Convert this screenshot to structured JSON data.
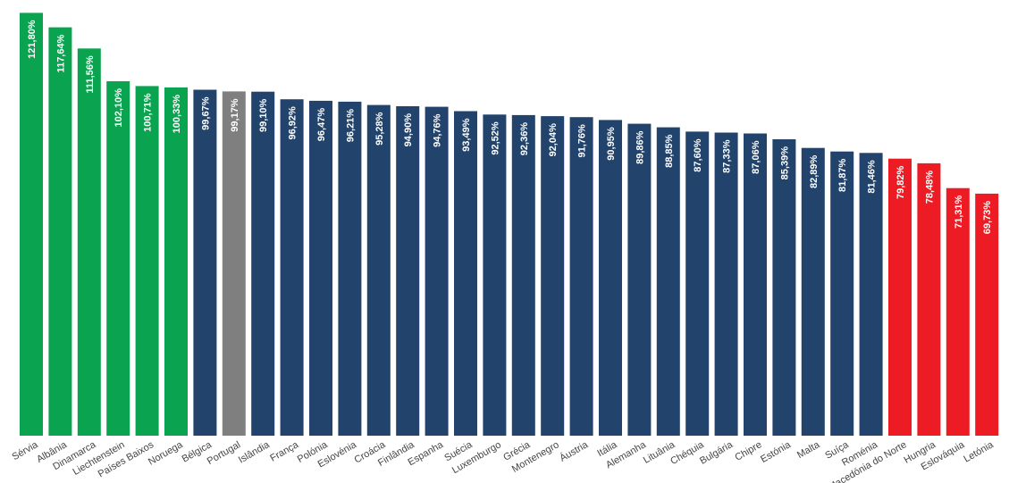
{
  "chart_data": {
    "type": "bar",
    "categories": [
      "Sérvia",
      "Albânia",
      "Dinamarca",
      "Liechtenstein",
      "Países Baixos",
      "Noruega",
      "Bélgica",
      "Portugal",
      "Islândia",
      "França",
      "Polónia",
      "Eslovénia",
      "Croácia",
      "Finlândia",
      "Espanha",
      "Suécia",
      "Luxemburgo",
      "Grécia",
      "Montenegro",
      "Áustria",
      "Itália",
      "Alemanha",
      "Lituânia",
      "Chéquia",
      "Bulgária",
      "Chipre",
      "Estónia",
      "Malta",
      "Suíça",
      "Roménia",
      "Macedónia do Norte",
      "Hungria",
      "Eslováquia",
      "Letónia"
    ],
    "values": [
      121.8,
      117.64,
      111.56,
      102.1,
      100.71,
      100.33,
      99.67,
      99.17,
      99.1,
      96.92,
      96.47,
      96.21,
      95.28,
      94.9,
      94.76,
      93.49,
      92.52,
      92.36,
      92.04,
      91.76,
      90.95,
      89.86,
      88.85,
      87.6,
      87.33,
      87.06,
      85.39,
      82.89,
      81.87,
      81.46,
      79.82,
      78.48,
      71.31,
      69.73
    ],
    "value_labels": [
      "121,80%",
      "117,64%",
      "111,56%",
      "102,10%",
      "100,71%",
      "100,33%",
      "99,67%",
      "99,17%",
      "99,10%",
      "96,92%",
      "96,47%",
      "96,21%",
      "95,28%",
      "94,90%",
      "94,76%",
      "93,49%",
      "92,52%",
      "92,36%",
      "92,04%",
      "91,76%",
      "90,95%",
      "89,86%",
      "88,85%",
      "87,60%",
      "87,33%",
      "87,06%",
      "85,39%",
      "82,89%",
      "81,87%",
      "81,46%",
      "79,82%",
      "78,48%",
      "71,31%",
      "69,73%"
    ],
    "bar_groups": [
      "green",
      "green",
      "green",
      "green",
      "green",
      "green",
      "navy",
      "gray",
      "navy",
      "navy",
      "navy",
      "navy",
      "navy",
      "navy",
      "navy",
      "navy",
      "navy",
      "navy",
      "navy",
      "navy",
      "navy",
      "navy",
      "navy",
      "navy",
      "navy",
      "navy",
      "navy",
      "navy",
      "navy",
      "navy",
      "red",
      "red",
      "red",
      "red"
    ],
    "colors": {
      "green": "#0aa34f",
      "navy": "#22436b",
      "gray": "#7f7f7f",
      "red": "#ed1c24"
    },
    "title": "",
    "xlabel": "",
    "ylabel": "",
    "grid": false,
    "legend": "none",
    "label_rotation_deg": -90,
    "xtick_rotation_deg": -30
  }
}
